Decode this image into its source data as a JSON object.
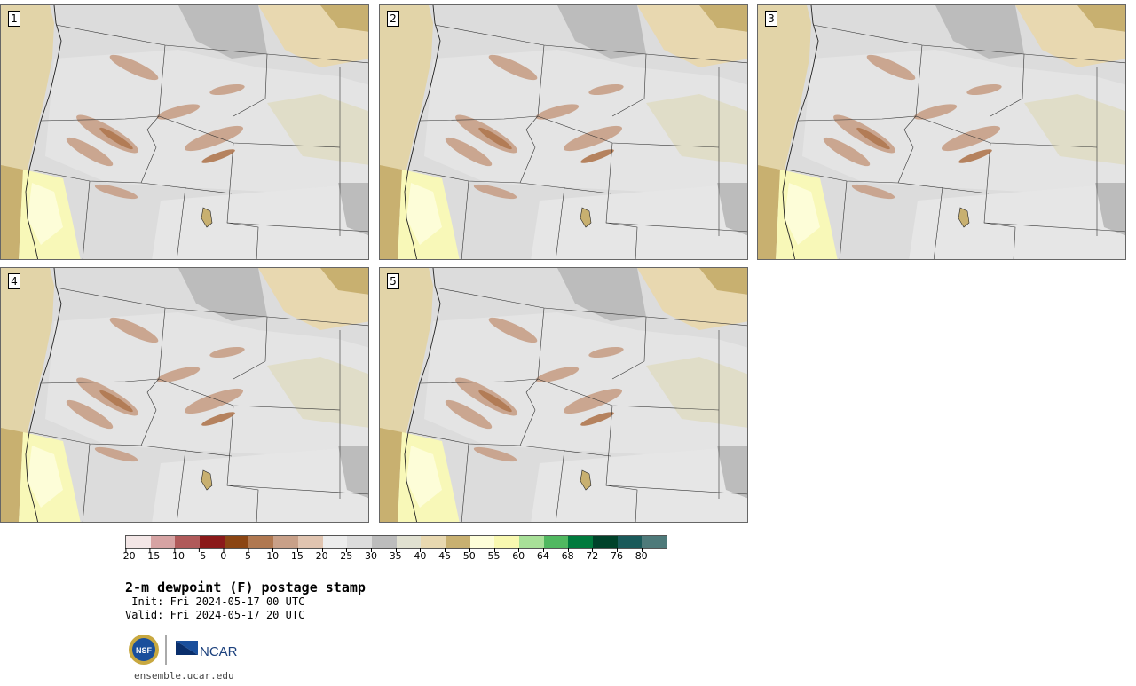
{
  "panels": [
    {
      "label": "1"
    },
    {
      "label": "2"
    },
    {
      "label": "3"
    },
    {
      "label": "4"
    },
    {
      "label": "5"
    }
  ],
  "colorbar": {
    "colors": [
      "#f3e6e6",
      "#d6a3a3",
      "#b05a5a",
      "#8b1a1a",
      "#8b4513",
      "#b07850",
      "#c8a088",
      "#e0c4b0",
      "#ececec",
      "#dcdcdc",
      "#bcbcbc",
      "#e0e0d0",
      "#e8d8b0",
      "#c8b070",
      "#fdfdd8",
      "#f8f8b0",
      "#a8e098",
      "#50b860",
      "#007a3d",
      "#00422a",
      "#1a5a5a",
      "#4e7a7a"
    ],
    "ticks": [
      "−20",
      "−15",
      "−10",
      "−5",
      "0",
      "5",
      "10",
      "15",
      "20",
      "25",
      "30",
      "35",
      "40",
      "45",
      "50",
      "55",
      "60",
      "64",
      "68",
      "72",
      "76",
      "80"
    ]
  },
  "title": "2-m dewpoint (F) postage stamp",
  "init": " Init: Fri 2024-05-17 00 UTC",
  "valid": "Valid: Fri 2024-05-17 20 UTC",
  "logos": {
    "left": "NSF",
    "right": "NCAR"
  },
  "footer": "ensemble.ucar.edu"
}
